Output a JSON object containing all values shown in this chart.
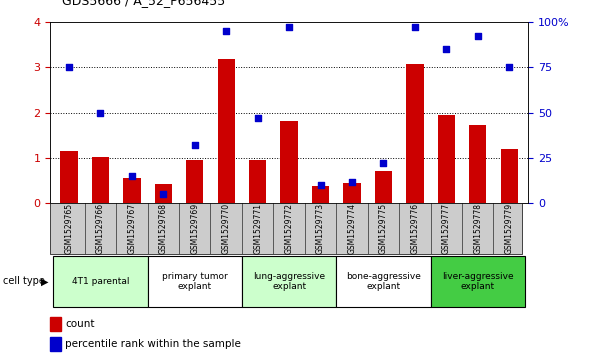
{
  "title": "GDS5666 / A_52_P656455",
  "samples": [
    "GSM1529765",
    "GSM1529766",
    "GSM1529767",
    "GSM1529768",
    "GSM1529769",
    "GSM1529770",
    "GSM1529771",
    "GSM1529772",
    "GSM1529773",
    "GSM1529774",
    "GSM1529775",
    "GSM1529776",
    "GSM1529777",
    "GSM1529778",
    "GSM1529779"
  ],
  "bar_values": [
    1.15,
    1.02,
    0.55,
    0.42,
    0.95,
    3.18,
    0.95,
    1.82,
    0.38,
    0.45,
    0.72,
    3.08,
    1.95,
    1.72,
    1.2
  ],
  "dot_values": [
    75,
    50,
    15,
    5,
    32,
    95,
    47,
    97,
    10,
    12,
    22,
    97,
    85,
    92,
    75
  ],
  "bar_color": "#cc0000",
  "dot_color": "#0000cc",
  "ylim_left": [
    0,
    4
  ],
  "ylim_right": [
    0,
    100
  ],
  "yticks_left": [
    0,
    1,
    2,
    3,
    4
  ],
  "yticks_right": [
    0,
    25,
    50,
    75,
    100
  ],
  "yticklabels_right": [
    "0",
    "25",
    "50",
    "75",
    "100%"
  ],
  "groups": [
    {
      "label": "4T1 parental",
      "start": 0,
      "end": 3,
      "color": "#ccffcc"
    },
    {
      "label": "primary tumor\nexplant",
      "start": 3,
      "end": 6,
      "color": "#ffffff"
    },
    {
      "label": "lung-aggressive\nexplant",
      "start": 6,
      "end": 9,
      "color": "#ccffcc"
    },
    {
      "label": "bone-aggressive\nexplant",
      "start": 9,
      "end": 12,
      "color": "#ffffff"
    },
    {
      "label": "liver-aggressive\nexplant",
      "start": 12,
      "end": 15,
      "color": "#44cc44"
    }
  ],
  "legend_bar_label": "count",
  "legend_dot_label": "percentile rank within the sample",
  "cell_type_label": "cell type",
  "sample_bg_color": "#cccccc",
  "bar_width": 0.55,
  "dot_size": 20
}
